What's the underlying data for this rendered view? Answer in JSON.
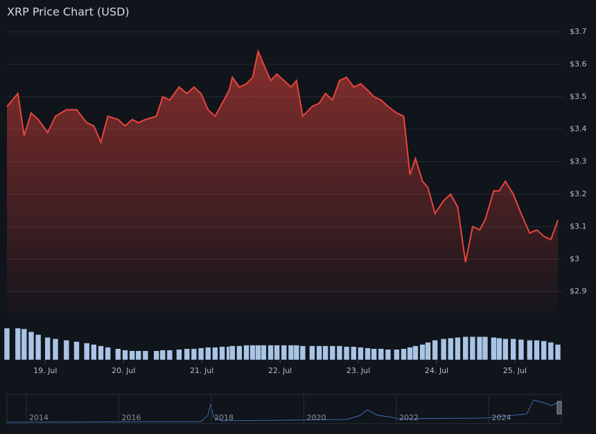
{
  "chart_data": {
    "type": "line",
    "title": "XRP Price Chart (USD)",
    "x": [
      18.51,
      18.65,
      18.73,
      18.82,
      18.91,
      19.03,
      19.13,
      19.27,
      19.4,
      19.53,
      19.62,
      19.71,
      19.8,
      19.93,
      20.02,
      20.11,
      20.19,
      20.28,
      20.42,
      20.5,
      20.59,
      20.71,
      20.81,
      20.9,
      20.99,
      21.08,
      21.17,
      21.26,
      21.35,
      21.39,
      21.48,
      21.57,
      21.65,
      21.72,
      21.79,
      21.88,
      21.96,
      22.05,
      22.14,
      22.21,
      22.29,
      22.41,
      22.5,
      22.58,
      22.67,
      22.76,
      22.85,
      22.94,
      23.03,
      23.12,
      23.2,
      23.29,
      23.38,
      23.49,
      23.58,
      23.66,
      23.73,
      23.82,
      23.89,
      23.98,
      24.09,
      24.18,
      24.27,
      24.37,
      24.46,
      24.55,
      24.62,
      24.73,
      24.8,
      24.88,
      24.98,
      25.08,
      25.19,
      25.28,
      25.37,
      25.46,
      25.55
    ],
    "series": [
      {
        "name": "Price",
        "color": "#e9453c",
        "values": [
          3.47,
          3.51,
          3.38,
          3.45,
          3.43,
          3.39,
          3.44,
          3.46,
          3.46,
          3.42,
          3.41,
          3.36,
          3.44,
          3.43,
          3.41,
          3.43,
          3.42,
          3.43,
          3.44,
          3.5,
          3.49,
          3.53,
          3.51,
          3.53,
          3.51,
          3.46,
          3.44,
          3.48,
          3.52,
          3.56,
          3.53,
          3.54,
          3.56,
          3.64,
          3.6,
          3.55,
          3.57,
          3.55,
          3.53,
          3.55,
          3.44,
          3.47,
          3.48,
          3.51,
          3.49,
          3.55,
          3.56,
          3.53,
          3.54,
          3.52,
          3.5,
          3.49,
          3.47,
          3.45,
          3.44,
          3.26,
          3.31,
          3.24,
          3.22,
          3.14,
          3.18,
          3.2,
          3.16,
          2.99,
          3.1,
          3.09,
          3.12,
          3.21,
          3.21,
          3.24,
          3.2,
          3.14,
          3.08,
          3.09,
          3.07,
          3.06,
          3.12
        ]
      },
      {
        "name": "Volume",
        "color": "#a9c4e4",
        "values": [
          45,
          45,
          44,
          40,
          36,
          32,
          30,
          28,
          26,
          24,
          22,
          20,
          18,
          16,
          14,
          13,
          13,
          13,
          13,
          14,
          14,
          15,
          16,
          16,
          17,
          18,
          18,
          19,
          19,
          20,
          20,
          21,
          21,
          21,
          21,
          21,
          21,
          21,
          21,
          21,
          20,
          20,
          20,
          20,
          20,
          20,
          19,
          19,
          18,
          17,
          16,
          16,
          15,
          15,
          16,
          18,
          20,
          22,
          25,
          28,
          30,
          31,
          32,
          33,
          33,
          33,
          33,
          32,
          31,
          30,
          30,
          29,
          28,
          28,
          27,
          25,
          22
        ]
      }
    ],
    "xlim": [
      18.51,
      25.55
    ],
    "xticks": [
      {
        "value": 19,
        "label": "19. Jul"
      },
      {
        "value": 20,
        "label": "20. Jul"
      },
      {
        "value": 21,
        "label": "21. Jul"
      },
      {
        "value": 22,
        "label": "22. Jul"
      },
      {
        "value": 23,
        "label": "23. Jul"
      },
      {
        "value": 24,
        "label": "24. Jul"
      },
      {
        "value": 25,
        "label": "25. Jul"
      }
    ],
    "ylim": [
      2.83,
      3.7
    ],
    "yticks": [
      {
        "value": 2.9,
        "label": "$2.9"
      },
      {
        "value": 3,
        "label": "$3"
      },
      {
        "value": 3.1,
        "label": "$3.1"
      },
      {
        "value": 3.2,
        "label": "$3.2"
      },
      {
        "value": 3.3,
        "label": "$3.3"
      },
      {
        "value": 3.4,
        "label": "$3.4"
      },
      {
        "value": 3.5,
        "label": "$3.5"
      },
      {
        "value": 3.6,
        "label": "$3.6"
      },
      {
        "value": 3.7,
        "label": "$3.7"
      }
    ],
    "grid": true,
    "navigator_labels": [
      "2014",
      "2016",
      "2018",
      "2020",
      "2022",
      "2024"
    ]
  }
}
